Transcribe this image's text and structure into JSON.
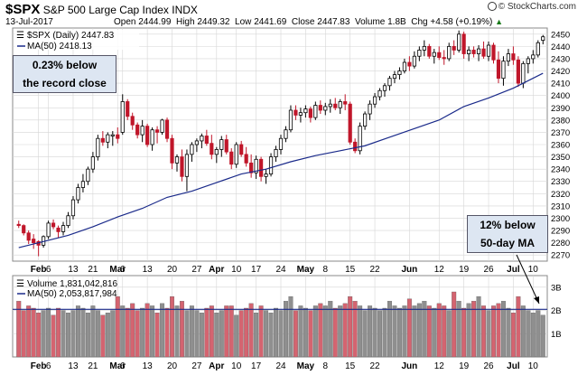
{
  "header": {
    "symbol": "$SPX",
    "name": "S&P 500 Large Cap Index",
    "exchange": "INDX",
    "date": "13-Jul-2017",
    "open_label": "Open",
    "open": "2444.99",
    "high_label": "High",
    "high": "2449.32",
    "low_label": "Low",
    "low": "2441.69",
    "close_label": "Close",
    "close": "2447.83",
    "volume_label": "Volume",
    "volume": "1.8B",
    "chg_label": "Chg",
    "chg": "+4.58 (+0.19%)",
    "arrow": "▲",
    "brand": "© StockCharts.com"
  },
  "legend": {
    "price": "$SPX (Daily) 2447.83",
    "ma": "MA(50) 2418.13",
    "volume": "Volume 1,831,042,816",
    "vol_ma": "MA(50) 2,053,817,984"
  },
  "annotations": {
    "record_line1": "0.23% below",
    "record_line2": "the record close",
    "ma_line1": "12% below",
    "ma_line2": "50-day MA"
  },
  "colors": {
    "up": "#000000",
    "down": "#c0162a",
    "ma": "#1a2a8a",
    "vol_up": "#8f8f8f",
    "vol_down": "#d46470",
    "callout_bg": "#dde6f2"
  },
  "chart_data": {
    "type": "candlestick",
    "ylim": [
      2265,
      2455
    ],
    "y_ticks": [
      2270,
      2280,
      2290,
      2300,
      2310,
      2320,
      2330,
      2340,
      2350,
      2360,
      2370,
      2380,
      2390,
      2400,
      2410,
      2420,
      2430,
      2440,
      2450
    ],
    "vol_ylim": [
      0,
      3.5
    ],
    "vol_ticks": [
      {
        "v": 1,
        "label": "1B"
      },
      {
        "v": 2,
        "label": "2B"
      },
      {
        "v": 3,
        "label": "3B"
      }
    ],
    "x_labels": [
      {
        "i": 4,
        "label": "Feb",
        "bold": true
      },
      {
        "i": 6,
        "label": "6"
      },
      {
        "i": 11,
        "label": "13"
      },
      {
        "i": 15,
        "label": "21"
      },
      {
        "i": 20,
        "label": "Mar",
        "bold": true
      },
      {
        "i": 21,
        "label": "6"
      },
      {
        "i": 26,
        "label": "13"
      },
      {
        "i": 31,
        "label": "20"
      },
      {
        "i": 36,
        "label": "27"
      },
      {
        "i": 40,
        "label": "Apr",
        "bold": true
      },
      {
        "i": 44,
        "label": "10"
      },
      {
        "i": 48,
        "label": "17"
      },
      {
        "i": 53,
        "label": "24"
      },
      {
        "i": 58,
        "label": "May",
        "bold": true
      },
      {
        "i": 62,
        "label": "8"
      },
      {
        "i": 67,
        "label": "15"
      },
      {
        "i": 72,
        "label": "22"
      },
      {
        "i": 79,
        "label": "Jun",
        "bold": true
      },
      {
        "i": 85,
        "label": "12"
      },
      {
        "i": 90,
        "label": "19"
      },
      {
        "i": 95,
        "label": "26"
      },
      {
        "i": 100,
        "label": "Jul",
        "bold": true
      },
      {
        "i": 104,
        "label": "10"
      }
    ],
    "candles": [
      [
        2295,
        2298,
        2292,
        2294
      ],
      [
        2294,
        2295,
        2286,
        2288
      ],
      [
        2288,
        2290,
        2279,
        2282
      ],
      [
        2283,
        2287,
        2275,
        2280
      ],
      [
        2281,
        2282,
        2269,
        2278
      ],
      [
        2278,
        2286,
        2276,
        2285
      ],
      [
        2285,
        2298,
        2283,
        2296
      ],
      [
        2296,
        2299,
        2291,
        2293
      ],
      [
        2292,
        2294,
        2284,
        2289
      ],
      [
        2289,
        2297,
        2286,
        2294
      ],
      [
        2294,
        2305,
        2292,
        2302
      ],
      [
        2302,
        2318,
        2299,
        2315
      ],
      [
        2315,
        2328,
        2312,
        2325
      ],
      [
        2325,
        2336,
        2321,
        2330
      ],
      [
        2330,
        2342,
        2327,
        2340
      ],
      [
        2340,
        2354,
        2337,
        2350
      ],
      [
        2350,
        2368,
        2347,
        2365
      ],
      [
        2365,
        2371,
        2359,
        2362
      ],
      [
        2362,
        2370,
        2357,
        2368
      ],
      [
        2367,
        2371,
        2359,
        2368
      ],
      [
        2368,
        2374,
        2361,
        2365
      ],
      [
        2370,
        2401,
        2368,
        2395
      ],
      [
        2395,
        2397,
        2380,
        2383
      ],
      [
        2383,
        2386,
        2372,
        2376
      ],
      [
        2376,
        2378,
        2365,
        2368
      ],
      [
        2368,
        2380,
        2362,
        2375
      ],
      [
        2375,
        2377,
        2358,
        2360
      ],
      [
        2360,
        2374,
        2355,
        2372
      ],
      [
        2372,
        2375,
        2361,
        2370
      ],
      [
        2370,
        2381,
        2368,
        2380
      ],
      [
        2380,
        2382,
        2362,
        2365
      ],
      [
        2365,
        2368,
        2340,
        2345
      ],
      [
        2345,
        2352,
        2338,
        2350
      ],
      [
        2350,
        2356,
        2330,
        2334
      ],
      [
        2334,
        2356,
        2322,
        2352
      ],
      [
        2352,
        2362,
        2346,
        2360
      ],
      [
        2360,
        2365,
        2354,
        2363
      ],
      [
        2363,
        2369,
        2357,
        2367
      ],
      [
        2367,
        2372,
        2359,
        2361
      ],
      [
        2361,
        2368,
        2348,
        2352
      ],
      [
        2352,
        2358,
        2345,
        2356
      ],
      [
        2356,
        2367,
        2350,
        2364
      ],
      [
        2364,
        2368,
        2352,
        2354
      ],
      [
        2354,
        2357,
        2340,
        2344
      ],
      [
        2344,
        2362,
        2341,
        2360
      ],
      [
        2360,
        2363,
        2350,
        2352
      ],
      [
        2352,
        2358,
        2342,
        2345
      ],
      [
        2345,
        2352,
        2333,
        2337
      ],
      [
        2337,
        2351,
        2332,
        2348
      ],
      [
        2348,
        2350,
        2330,
        2334
      ],
      [
        2334,
        2340,
        2328,
        2336
      ],
      [
        2336,
        2353,
        2334,
        2350
      ],
      [
        2350,
        2359,
        2346,
        2356
      ],
      [
        2356,
        2368,
        2352,
        2365
      ],
      [
        2365,
        2375,
        2362,
        2372
      ],
      [
        2372,
        2392,
        2370,
        2388
      ],
      [
        2388,
        2392,
        2380,
        2384
      ],
      [
        2384,
        2390,
        2378,
        2386
      ],
      [
        2386,
        2392,
        2382,
        2389
      ],
      [
        2389,
        2391,
        2378,
        2382
      ],
      [
        2382,
        2395,
        2380,
        2392
      ],
      [
        2392,
        2396,
        2385,
        2388
      ],
      [
        2388,
        2394,
        2384,
        2391
      ],
      [
        2391,
        2397,
        2386,
        2393
      ],
      [
        2393,
        2398,
        2388,
        2390
      ],
      [
        2390,
        2397,
        2385,
        2395
      ],
      [
        2395,
        2401,
        2388,
        2393
      ],
      [
        2393,
        2395,
        2360,
        2362
      ],
      [
        2362,
        2365,
        2353,
        2355
      ],
      [
        2355,
        2378,
        2352,
        2375
      ],
      [
        2375,
        2387,
        2372,
        2385
      ],
      [
        2385,
        2396,
        2380,
        2393
      ],
      [
        2393,
        2402,
        2390,
        2399
      ],
      [
        2399,
        2406,
        2396,
        2404
      ],
      [
        2404,
        2410,
        2399,
        2408
      ],
      [
        2408,
        2416,
        2404,
        2414
      ],
      [
        2414,
        2420,
        2410,
        2417
      ],
      [
        2417,
        2423,
        2413,
        2420
      ],
      [
        2420,
        2430,
        2418,
        2427
      ],
      [
        2427,
        2432,
        2420,
        2424
      ],
      [
        2424,
        2436,
        2422,
        2432
      ],
      [
        2432,
        2440,
        2428,
        2437
      ],
      [
        2437,
        2445,
        2432,
        2440
      ],
      [
        2440,
        2442,
        2430,
        2432
      ],
      [
        2432,
        2438,
        2426,
        2435
      ],
      [
        2435,
        2440,
        2429,
        2431
      ],
      [
        2431,
        2437,
        2425,
        2430
      ],
      [
        2430,
        2443,
        2428,
        2440
      ],
      [
        2440,
        2445,
        2433,
        2437
      ],
      [
        2437,
        2453,
        2435,
        2450
      ],
      [
        2450,
        2452,
        2430,
        2434
      ],
      [
        2434,
        2440,
        2428,
        2437
      ],
      [
        2437,
        2440,
        2431,
        2434
      ],
      [
        2434,
        2441,
        2428,
        2438
      ],
      [
        2438,
        2444,
        2430,
        2432
      ],
      [
        2432,
        2444,
        2428,
        2441
      ],
      [
        2441,
        2443,
        2426,
        2429
      ],
      [
        2429,
        2436,
        2410,
        2414
      ],
      [
        2414,
        2432,
        2408,
        2428
      ],
      [
        2428,
        2438,
        2424,
        2434
      ],
      [
        2434,
        2440,
        2425,
        2429
      ],
      [
        2429,
        2432,
        2407,
        2410
      ],
      [
        2410,
        2428,
        2406,
        2426
      ],
      [
        2426,
        2432,
        2418,
        2430
      ],
      [
        2430,
        2437,
        2426,
        2433
      ],
      [
        2433,
        2445,
        2431,
        2443
      ],
      [
        2444.99,
        2449.32,
        2441.69,
        2447.83
      ]
    ],
    "ma50": [
      [
        0,
        2276
      ],
      [
        5,
        2281
      ],
      [
        10,
        2286
      ],
      [
        15,
        2293
      ],
      [
        20,
        2301
      ],
      [
        25,
        2308
      ],
      [
        30,
        2317
      ],
      [
        35,
        2322
      ],
      [
        40,
        2329
      ],
      [
        45,
        2336
      ],
      [
        50,
        2340
      ],
      [
        55,
        2346
      ],
      [
        60,
        2351
      ],
      [
        65,
        2355
      ],
      [
        70,
        2359
      ],
      [
        75,
        2366
      ],
      [
        80,
        2373
      ],
      [
        85,
        2380
      ],
      [
        90,
        2391
      ],
      [
        95,
        2398
      ],
      [
        100,
        2406
      ],
      [
        106,
        2418.13
      ]
    ],
    "volume": [
      2.4,
      2.0,
      2.2,
      2.1,
      1.9,
      2.0,
      2.1,
      1.8,
      2.1,
      2.0,
      1.9,
      2.0,
      2.2,
      2.1,
      1.9,
      2.2,
      2.0,
      1.8,
      1.9,
      2.0,
      2.6,
      2.2,
      2.1,
      2.3,
      2.0,
      2.1,
      2.3,
      2.2,
      1.9,
      2.3,
      2.1,
      2.6,
      2.2,
      2.4,
      2.0,
      2.2,
      2.0,
      1.9,
      2.1,
      2.2,
      1.9,
      2.0,
      2.2,
      2.2,
      1.8,
      2.0,
      2.1,
      2.3,
      1.9,
      2.2,
      2.0,
      1.9,
      2.1,
      2.0,
      2.4,
      2.6,
      2.0,
      2.2,
      2.1,
      2.0,
      2.2,
      2.3,
      2.2,
      2.4,
      2.1,
      2.2,
      2.3,
      2.6,
      2.4,
      2.2,
      2.0,
      2.2,
      2.1,
      2.0,
      2.1,
      2.4,
      2.2,
      2.1,
      2.2,
      2.5,
      2.2,
      2.3,
      2.4,
      2.2,
      2.1,
      2.3,
      2.2,
      2.0,
      2.8,
      2.4,
      2.1,
      2.3,
      2.4,
      2.6,
      2.2,
      2.0,
      2.2,
      2.3,
      2.4,
      2.1,
      1.9,
      2.6,
      2.2,
      2.0,
      1.9,
      2.0,
      1.8
    ]
  }
}
